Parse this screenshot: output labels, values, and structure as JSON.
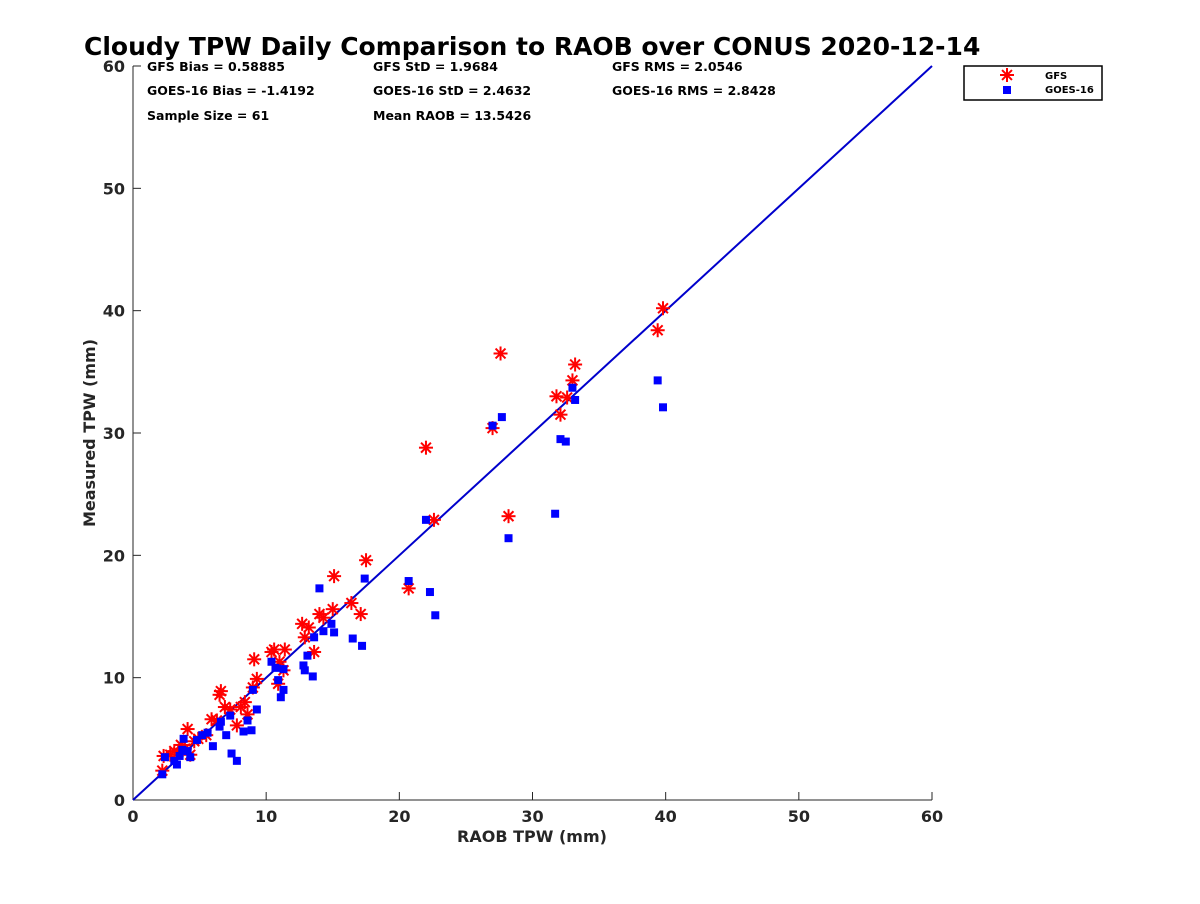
{
  "chart_data": {
    "type": "scatter",
    "title": "Cloudy TPW Daily Comparison to RAOB over CONUS 2020-12-14",
    "xlabel": "RAOB TPW (mm)",
    "ylabel": "Measured TPW (mm)",
    "xlim": [
      0,
      60
    ],
    "ylim": [
      0,
      60
    ],
    "x_ticks": [
      "0",
      "10",
      "20",
      "30",
      "40",
      "50",
      "60"
    ],
    "y_ticks": [
      "0",
      "10",
      "20",
      "30",
      "40",
      "50",
      "60"
    ],
    "grid": false,
    "legend_position": "top-right, outside plot",
    "reference_line": {
      "x": [
        0,
        60
      ],
      "y": [
        0,
        60
      ],
      "color": "#0000cc"
    },
    "stats": {
      "row1": [
        "GFS Bias = 0.58885",
        "GFS StD = 1.9684",
        "GFS RMS = 2.0546"
      ],
      "row2": [
        "GOES-16 Bias = -1.4192",
        "GOES-16 StD = 2.4632",
        "GOES-16 RMS = 2.8428"
      ],
      "row3": [
        "Sample Size = 61",
        "Mean RAOB = 13.5426"
      ]
    },
    "series": [
      {
        "name": "GFS",
        "marker": "asterisk",
        "color": "#ff0000",
        "points": [
          [
            2.2,
            2.4
          ],
          [
            2.3,
            3.6
          ],
          [
            2.8,
            3.7
          ],
          [
            3.1,
            4.0
          ],
          [
            3.4,
            3.9
          ],
          [
            3.6,
            4.5
          ],
          [
            3.9,
            4.2
          ],
          [
            4.1,
            5.8
          ],
          [
            4.3,
            3.7
          ],
          [
            4.6,
            4.8
          ],
          [
            4.9,
            5.0
          ],
          [
            5.5,
            5.3
          ],
          [
            5.9,
            6.6
          ],
          [
            6.3,
            6.5
          ],
          [
            6.5,
            8.6
          ],
          [
            6.6,
            8.9
          ],
          [
            6.9,
            7.6
          ],
          [
            7.3,
            7.4
          ],
          [
            7.8,
            6.1
          ],
          [
            8.1,
            7.6
          ],
          [
            8.4,
            8.0
          ],
          [
            8.6,
            7.0
          ],
          [
            9.0,
            9.2
          ],
          [
            9.1,
            11.5
          ],
          [
            9.3,
            9.9
          ],
          [
            10.4,
            12.1
          ],
          [
            10.6,
            12.3
          ],
          [
            10.9,
            9.5
          ],
          [
            11.0,
            11.3
          ],
          [
            11.4,
            12.3
          ],
          [
            11.3,
            10.6
          ],
          [
            12.7,
            14.4
          ],
          [
            12.9,
            13.3
          ],
          [
            13.2,
            14.1
          ],
          [
            13.6,
            12.1
          ],
          [
            14.0,
            15.2
          ],
          [
            14.3,
            14.9
          ],
          [
            15.0,
            15.6
          ],
          [
            15.1,
            18.3
          ],
          [
            16.4,
            16.1
          ],
          [
            17.1,
            15.2
          ],
          [
            17.5,
            19.6
          ],
          [
            20.7,
            17.3
          ],
          [
            22.0,
            28.8
          ],
          [
            22.6,
            22.9
          ],
          [
            27.0,
            30.4
          ],
          [
            27.6,
            36.5
          ],
          [
            28.2,
            23.2
          ],
          [
            31.8,
            33.0
          ],
          [
            32.1,
            31.5
          ],
          [
            32.6,
            32.9
          ],
          [
            33.0,
            34.3
          ],
          [
            33.2,
            35.6
          ],
          [
            39.4,
            38.4
          ],
          [
            39.8,
            40.2
          ]
        ]
      },
      {
        "name": "GOES-16",
        "marker": "square",
        "color": "#0000ff",
        "points": [
          [
            2.2,
            2.1
          ],
          [
            2.4,
            3.5
          ],
          [
            3.1,
            3.2
          ],
          [
            3.3,
            2.9
          ],
          [
            3.5,
            3.6
          ],
          [
            3.7,
            4.1
          ],
          [
            3.8,
            5.0
          ],
          [
            4.1,
            4.0
          ],
          [
            4.3,
            3.5
          ],
          [
            4.8,
            4.9
          ],
          [
            5.2,
            5.3
          ],
          [
            5.6,
            5.5
          ],
          [
            6.0,
            4.4
          ],
          [
            6.5,
            6.0
          ],
          [
            6.6,
            6.4
          ],
          [
            7.0,
            5.3
          ],
          [
            7.3,
            6.9
          ],
          [
            7.4,
            3.8
          ],
          [
            7.8,
            3.2
          ],
          [
            8.3,
            5.6
          ],
          [
            8.6,
            6.5
          ],
          [
            8.9,
            5.7
          ],
          [
            9.0,
            9.0
          ],
          [
            9.3,
            7.4
          ],
          [
            10.4,
            11.3
          ],
          [
            10.7,
            10.8
          ],
          [
            10.9,
            9.8
          ],
          [
            11.1,
            8.4
          ],
          [
            11.3,
            9.0
          ],
          [
            11.3,
            10.7
          ],
          [
            12.8,
            11.0
          ],
          [
            12.9,
            10.6
          ],
          [
            13.1,
            11.8
          ],
          [
            13.5,
            10.1
          ],
          [
            13.6,
            13.3
          ],
          [
            14.0,
            17.3
          ],
          [
            14.3,
            13.8
          ],
          [
            14.9,
            14.4
          ],
          [
            15.1,
            13.7
          ],
          [
            16.5,
            13.2
          ],
          [
            17.2,
            12.6
          ],
          [
            17.4,
            18.1
          ],
          [
            20.7,
            17.9
          ],
          [
            22.0,
            22.9
          ],
          [
            22.3,
            17.0
          ],
          [
            22.7,
            15.1
          ],
          [
            27.0,
            30.6
          ],
          [
            27.7,
            31.3
          ],
          [
            28.2,
            21.4
          ],
          [
            31.7,
            23.4
          ],
          [
            32.1,
            29.5
          ],
          [
            32.5,
            29.3
          ],
          [
            33.0,
            33.7
          ],
          [
            33.2,
            32.7
          ],
          [
            39.4,
            34.3
          ],
          [
            39.8,
            32.1
          ]
        ]
      }
    ]
  }
}
